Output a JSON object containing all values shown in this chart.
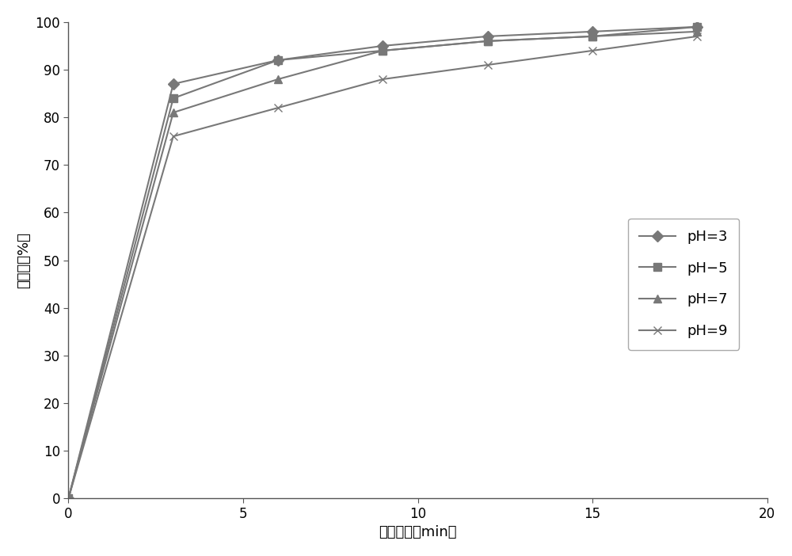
{
  "x": [
    0,
    3,
    6,
    9,
    12,
    15,
    18
  ],
  "pH3": [
    0,
    87,
    92,
    95,
    97,
    98,
    99
  ],
  "pH5": [
    0,
    84,
    92,
    94,
    96,
    97,
    99
  ],
  "pH7": [
    0,
    81,
    88,
    94,
    96,
    97,
    98
  ],
  "pH9": [
    0,
    76,
    82,
    88,
    91,
    94,
    97
  ],
  "color": "#787878",
  "markers": {
    "pH3": "D",
    "pH5": "s",
    "pH7": "^",
    "pH9": "x"
  },
  "labels": {
    "pH3": "pH=3",
    "pH5": "pH−5",
    "pH7": "pH=7",
    "pH9": "pH=9"
  },
  "xlabel": "反应时间（min）",
  "ylabel": "降解率（%）",
  "xlim": [
    0,
    20
  ],
  "ylim": [
    0,
    100
  ],
  "xticks": [
    0,
    5,
    10,
    15,
    20
  ],
  "yticks": [
    0,
    10,
    20,
    30,
    40,
    50,
    60,
    70,
    80,
    90,
    100
  ],
  "markersize": 7,
  "linewidth": 1.5,
  "fontsize_ticks": 12,
  "fontsize_labels": 13,
  "fontsize_legend": 13,
  "background_color": "#ffffff"
}
